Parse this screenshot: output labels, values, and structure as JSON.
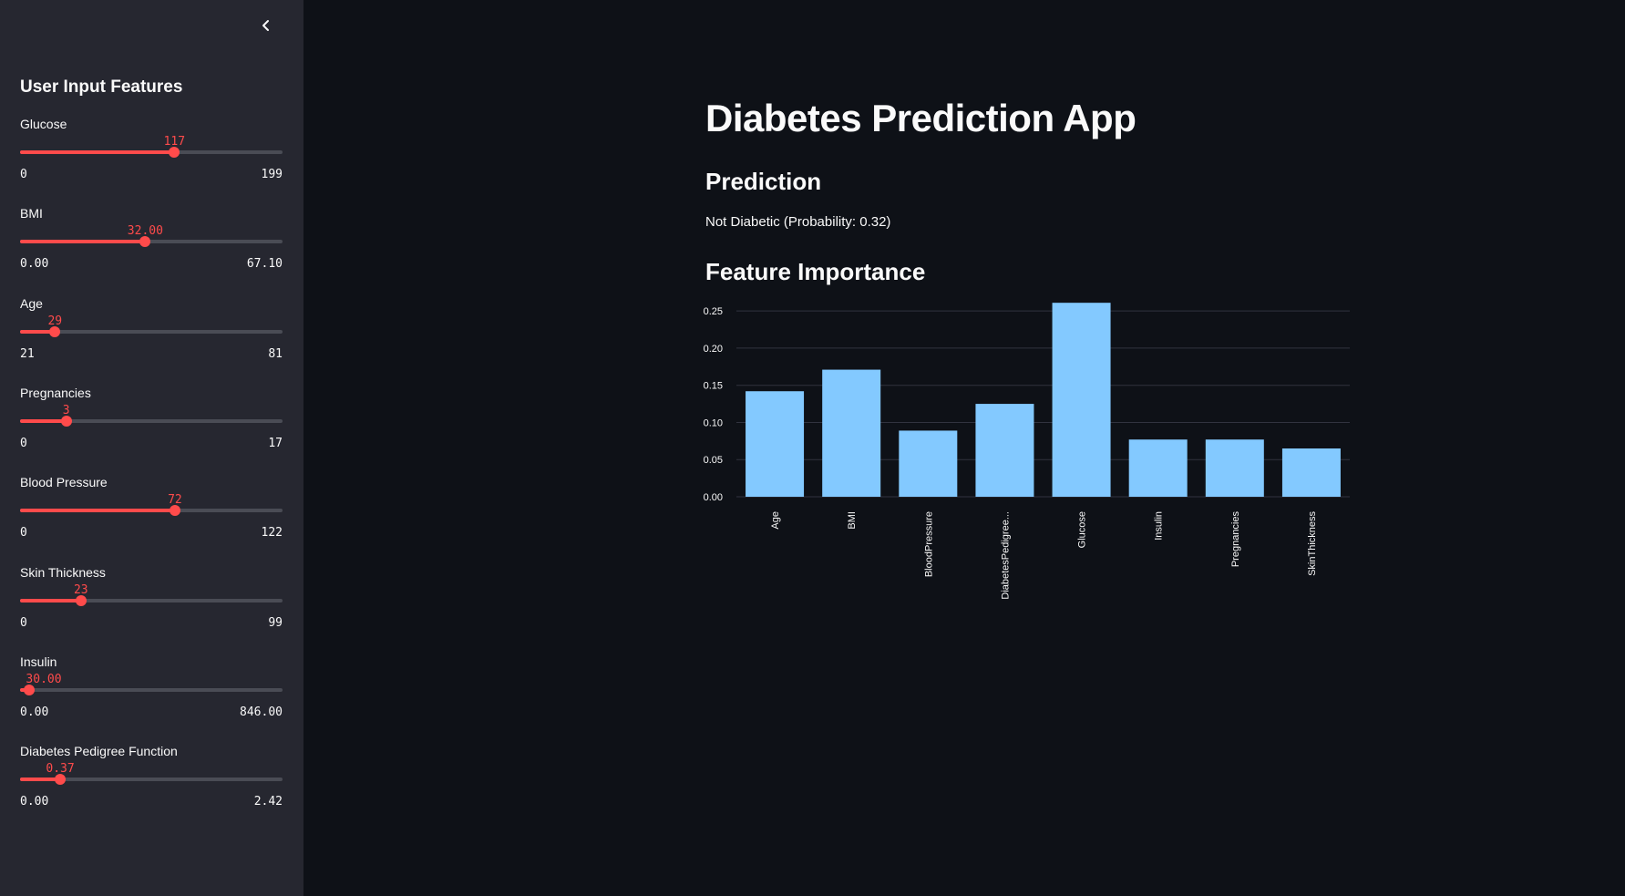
{
  "sidebar": {
    "title": "User Input Features",
    "collapse_icon": "chevron-left-icon",
    "sliders": [
      {
        "label": "Glucose",
        "value": "117",
        "min": "0",
        "max": "199",
        "fraction": 0.588
      },
      {
        "label": "BMI",
        "value": "32.00",
        "min": "0.00",
        "max": "67.10",
        "fraction": 0.477
      },
      {
        "label": "Age",
        "value": "29",
        "min": "21",
        "max": "81",
        "fraction": 0.133
      },
      {
        "label": "Pregnancies",
        "value": "3",
        "min": "0",
        "max": "17",
        "fraction": 0.176
      },
      {
        "label": "Blood Pressure",
        "value": "72",
        "min": "0",
        "max": "122",
        "fraction": 0.59
      },
      {
        "label": "Skin Thickness",
        "value": "23",
        "min": "0",
        "max": "99",
        "fraction": 0.232
      },
      {
        "label": "Insulin",
        "value": "30.00",
        "min": "0.00",
        "max": "846.00",
        "fraction": 0.035
      },
      {
        "label": "Diabetes Pedigree Function",
        "value": "0.37",
        "min": "0.00",
        "max": "2.42",
        "fraction": 0.153
      }
    ],
    "accent_color": "#ff4b4b"
  },
  "main": {
    "title": "Diabetes Prediction App",
    "prediction_header": "Prediction",
    "prediction_text": "Not Diabetic (Probability: 0.32)",
    "feature_header": "Feature Importance"
  },
  "chart_data": {
    "type": "bar",
    "categories": [
      "Age",
      "BMI",
      "BloodPressure",
      "DiabetesPedigree...",
      "Glucose",
      "Insulin",
      "Pregnancies",
      "SkinThickness"
    ],
    "values": [
      0.142,
      0.171,
      0.089,
      0.125,
      0.261,
      0.077,
      0.077,
      0.065
    ],
    "yticks": [
      "0.00",
      "0.05",
      "0.10",
      "0.15",
      "0.20",
      "0.25"
    ],
    "ylim": [
      0,
      0.26
    ],
    "grid": true,
    "bar_color": "#83c9ff"
  }
}
